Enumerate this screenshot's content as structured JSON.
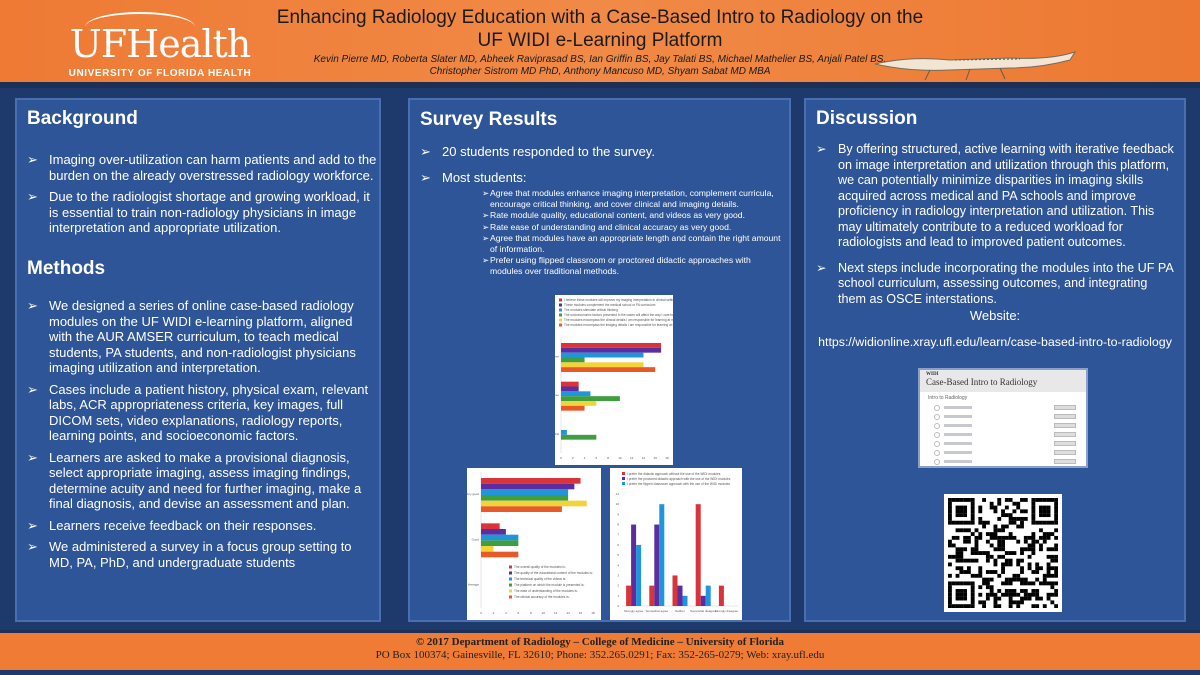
{
  "header": {
    "logo_text": "UFHealth",
    "logo_subtitle": "UNIVERSITY OF FLORIDA HEALTH",
    "title_line1": "Enhancing Radiology Education with a Case-Based Intro to Radiology on the",
    "title_line2": "UF WIDI e-Learning Platform",
    "authors_line1": "Kevin Pierre MD, Roberta Slater MD, Abheek Raviprasad BS, Ian Griffin BS, Jay Talati BS, Michael Mathelier BS, Anjali Patel BS,",
    "authors_line2": "Christopher Sistrom MD PhD, Anthony Mancuso MD, Shyam Sabat MD MBA"
  },
  "background": {
    "title": "Background",
    "bullets": [
      "Imaging over-utilization can harm patients and add to the burden on the already overstressed radiology workforce.",
      "Due to the radiologist shortage and growing workload, it is essential to train non-radiology physicians in image interpretation and appropriate utilization."
    ]
  },
  "methods": {
    "title": "Methods",
    "bullets": [
      "We designed a series of online case-based radiology modules on the UF WIDI e-learning platform, aligned with the AUR AMSER curriculum, to teach medical students, PA students, and non-radiologist physicians imaging utilization and interpretation.",
      "Cases include a patient history, physical exam, relevant labs, ACR appropriateness criteria, key images, full DICOM sets, video explanations, radiology reports, learning points, and socioeconomic factors.",
      "Learners are asked to make a provisional diagnosis, select appropriate imaging, assess imaging findings, determine acuity and need for further imaging, make a final diagnosis, and devise an assessment and plan.",
      "Learners receive feedback on their responses.",
      "We administered a survey in a focus group setting to MD, PA, PhD, and undergraduate students"
    ]
  },
  "survey": {
    "title": "Survey Results",
    "bullet1": "20 students responded to the survey.",
    "bullet2": "Most students:",
    "sub": [
      "Agree that modules enhance imaging interpretation, complement curricula, encourage critical thinking, and cover clinical and imaging details.",
      "Rate module quality, educational content, and videos as very good.",
      "Rate ease of understanding and clinical accuracy as very good.",
      "Agree that modules have an appropriate length and contain the right amount of information.",
      "Prefer using flipped classroom or proctored didactic approaches with modules over traditional methods."
    ]
  },
  "discussion": {
    "title": "Discussion",
    "bullets": [
      "By offering structured, active learning with iterative feedback on image interpretation and utilization through this platform, we can potentially minimize disparities in imaging skills acquired across medical and PA schools and improve proficiency in radiology interpretation and utilization. This may ultimately contribute to a reduced workload for radiologists and lead to improved patient outcomes.",
      "Next steps include incorporating the modules into the UF PA school curriculum, assessing outcomes, and integrating them as OSCE interstations."
    ],
    "website_label": "Website:",
    "website_url": "https://widionline.xray.ufl.edu/learn/case-based-intro-to-radiology",
    "screenshot": {
      "brand": "WIDI",
      "title": "Case-Based Intro to Radiology",
      "section": "Intro to Radiology"
    }
  },
  "footer": {
    "line1": "© 2017 Department of Radiology – College of Medicine – University of Florida",
    "line2": "PO Box 100374; Gainesville, FL 32610; Phone: 352.265.0291; Fax: 352-265-0279; Web: xray.ufl.edu"
  },
  "colors": {
    "s1": "#d9343a",
    "s2": "#5b2d9e",
    "s3": "#1f95dc",
    "s4": "#3f9e3f",
    "s5": "#f4d23a",
    "s6": "#e8592a"
  },
  "chart_data": [
    {
      "type": "bar",
      "orientation": "horizontal",
      "categories": [
        "Strongly agree",
        "Somewhat agree",
        "Neutral"
      ],
      "xlim": [
        0,
        18
      ],
      "ticks": [
        0,
        2,
        4,
        6,
        8,
        10,
        12,
        14,
        16,
        18
      ],
      "legend_position": "top",
      "series": [
        {
          "name": "I believe these modules will improve my imaging interpretation in clinical settings",
          "values": [
            17,
            3,
            0
          ]
        },
        {
          "name": "These modules complement the medical school or PA curriculum",
          "values": [
            17,
            3,
            0
          ]
        },
        {
          "name": "The modules stimulate critical thinking",
          "values": [
            14,
            5,
            1
          ]
        },
        {
          "name": "The socioeconomic factors presented in the cases will affect the way I care for my patients",
          "values": [
            4,
            10,
            6
          ]
        },
        {
          "name": "The modules encompass the clinical details I am responsible for learning at my level of training",
          "values": [
            14,
            6,
            0
          ]
        },
        {
          "name": "The modules encompass the imaging details I am responsible for learning at my level of training",
          "values": [
            16,
            4,
            0
          ]
        }
      ]
    },
    {
      "type": "bar",
      "orientation": "horizontal",
      "categories": [
        "Very good",
        "Good",
        "Average"
      ],
      "xlim": [
        0,
        18
      ],
      "ticks": [
        0,
        2,
        4,
        6,
        8,
        10,
        12,
        14,
        16,
        18
      ],
      "legend_position": "bottom-right",
      "series": [
        {
          "name": "The overall quality of the modules is:",
          "values": [
            16,
            3,
            0
          ]
        },
        {
          "name": "The quality of the educational content of the modules is:",
          "values": [
            15,
            4,
            0
          ]
        },
        {
          "name": "The technical quality of the videos is:",
          "values": [
            14,
            6,
            0
          ]
        },
        {
          "name": "The platform on which the module is presented is:",
          "values": [
            14,
            6,
            0
          ]
        },
        {
          "name": "The ease of understanding of the modules is:",
          "values": [
            17,
            2,
            0
          ]
        },
        {
          "name": "The clinical accuracy of the modules is:",
          "values": [
            13,
            6,
            0
          ]
        }
      ]
    },
    {
      "type": "bar",
      "orientation": "vertical",
      "categories": [
        "Strongly agree",
        "Somewhat agree",
        "Neither",
        "Somewhat disagree",
        "Strongly disagree"
      ],
      "ylim": [
        0,
        11
      ],
      "ticks": [
        0,
        1,
        2,
        3,
        4,
        5,
        6,
        7,
        8,
        9,
        10,
        11
      ],
      "legend_position": "top",
      "series": [
        {
          "name": "I prefer the didactic approach without the use of the WIDI modules",
          "values": [
            2,
            2,
            3,
            10,
            2
          ]
        },
        {
          "name": "I prefer the proctored didactic approach with the use of the WIDI modules",
          "values": [
            8,
            8,
            2,
            1,
            0
          ]
        },
        {
          "name": "I prefer the flipped classroom approach with the use of the WIDI modules",
          "values": [
            6,
            10,
            1,
            2,
            0
          ]
        }
      ]
    }
  ]
}
